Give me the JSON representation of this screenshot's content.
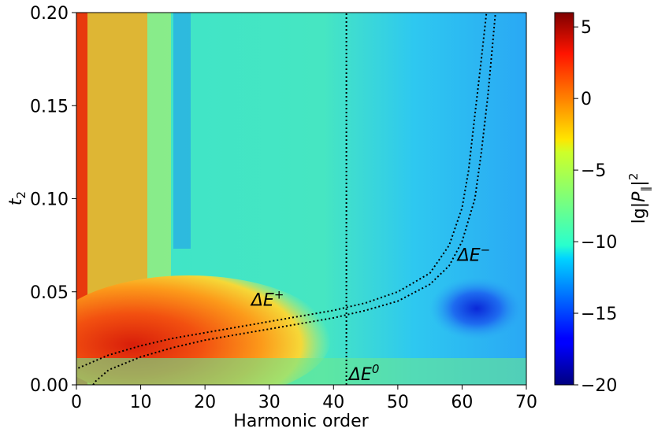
{
  "chart_data": {
    "type": "heatmap",
    "xlabel": "Harmonic order",
    "ylabel_main": "t",
    "ylabel_sub": "2",
    "xlim": [
      0,
      70
    ],
    "ylim": [
      0,
      0.2
    ],
    "xticks": [
      "0",
      "10",
      "20",
      "30",
      "40",
      "50",
      "60",
      "70"
    ],
    "xtick_values": [
      0,
      10,
      20,
      30,
      40,
      50,
      60,
      70
    ],
    "yticks": [
      "0.00",
      "0.05",
      "0.10",
      "0.15",
      "0.20"
    ],
    "ytick_values": [
      0,
      0.05,
      0.1,
      0.15,
      0.2
    ],
    "colorbar": {
      "label": "lg|P_∥|²",
      "label_parts": [
        "lg|",
        "P",
        "∥",
        "|",
        "2"
      ],
      "range": [
        -20,
        6
      ],
      "ticks": [
        "−20",
        "−15",
        "−10",
        "−5",
        "0",
        "5"
      ],
      "tick_values": [
        -20,
        -15,
        -10,
        -5,
        0,
        5
      ],
      "colormap": "jet"
    },
    "curves": [
      {
        "name": "ΔE+",
        "style": "dotted",
        "points": [
          [
            0.3,
            0.009
          ],
          [
            5,
            0.016
          ],
          [
            10,
            0.021
          ],
          [
            15,
            0.025
          ],
          [
            20,
            0.028
          ],
          [
            25,
            0.031
          ],
          [
            30,
            0.034
          ],
          [
            35,
            0.037
          ],
          [
            40,
            0.04
          ],
          [
            45,
            0.044
          ],
          [
            50,
            0.05
          ],
          [
            55,
            0.06
          ],
          [
            58,
            0.075
          ],
          [
            60,
            0.095
          ],
          [
            61,
            0.115
          ],
          [
            62,
            0.145
          ],
          [
            63,
            0.175
          ],
          [
            63.8,
            0.2
          ]
        ]
      },
      {
        "name": "ΔE-",
        "style": "dotted",
        "points": [
          [
            2.6,
            0.0
          ],
          [
            3,
            0.002
          ],
          [
            5,
            0.008
          ],
          [
            10,
            0.015
          ],
          [
            15,
            0.02
          ],
          [
            20,
            0.024
          ],
          [
            25,
            0.027
          ],
          [
            30,
            0.03
          ],
          [
            35,
            0.033
          ],
          [
            40,
            0.036
          ],
          [
            45,
            0.04
          ],
          [
            50,
            0.045
          ],
          [
            55,
            0.054
          ],
          [
            58,
            0.064
          ],
          [
            60,
            0.077
          ],
          [
            62,
            0.1
          ],
          [
            63,
            0.125
          ],
          [
            64,
            0.155
          ],
          [
            64.8,
            0.185
          ],
          [
            65.2,
            0.2
          ]
        ]
      },
      {
        "name": "ΔE0",
        "style": "dotted",
        "points": [
          [
            42,
            0
          ],
          [
            42,
            0.2
          ]
        ]
      }
    ],
    "annotations": [
      {
        "text": "ΔE",
        "sup": "+",
        "x": 27.2,
        "y": 0.0425
      },
      {
        "text": "ΔE",
        "sup": "−",
        "x": 59.3,
        "y": 0.0665
      },
      {
        "text": "ΔE",
        "sup": "0",
        "x": 42.4,
        "y": 0.0025
      }
    ]
  }
}
